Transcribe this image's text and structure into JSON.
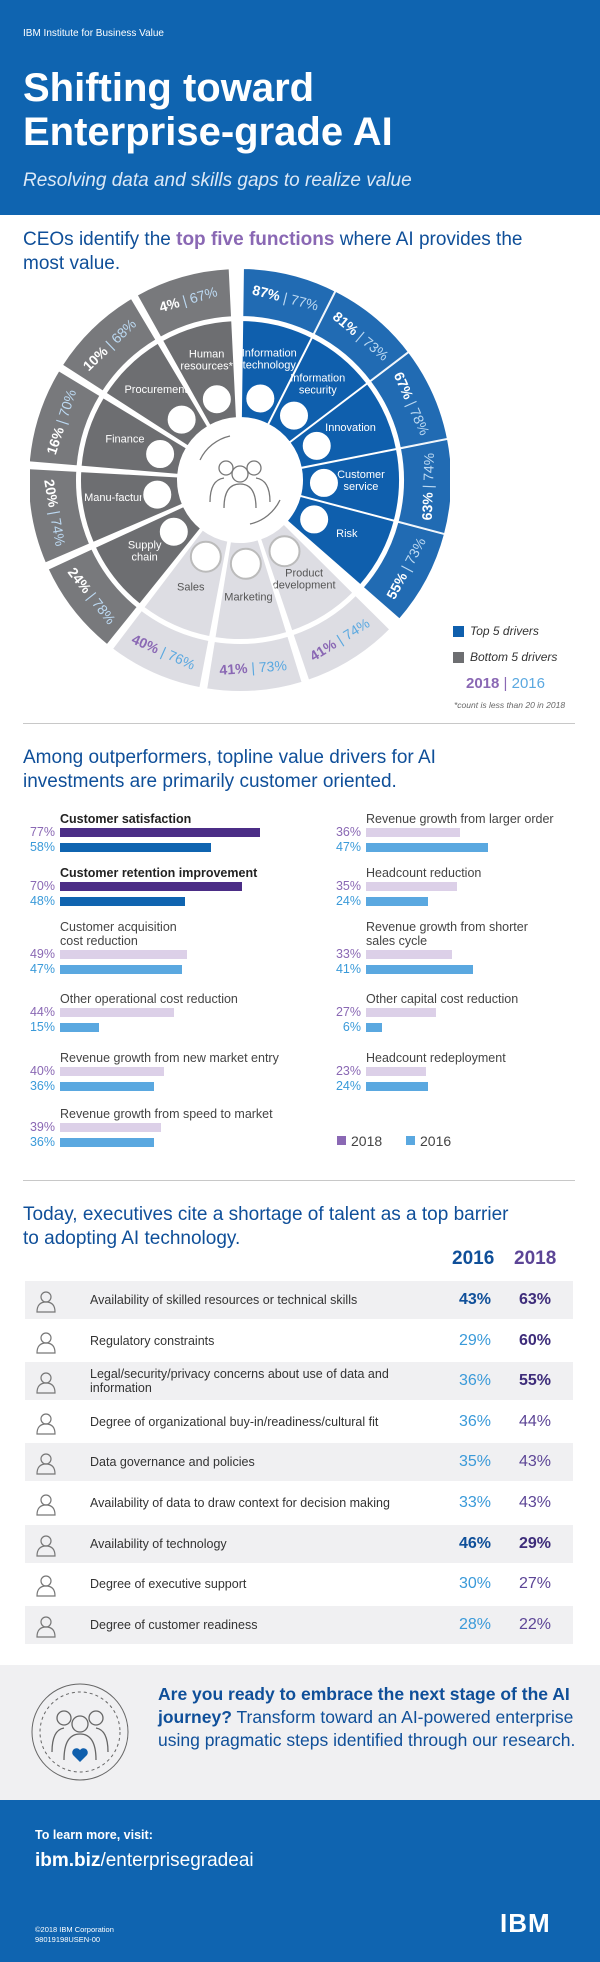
{
  "header": {
    "org": "IBM Institute for Business Value",
    "title_line1": "Shifting toward",
    "title_line2": "Enterprise-grade AI",
    "subtitle": "Resolving data and skills gaps to realize value"
  },
  "section1": {
    "title_pre": "CEOs identify the ",
    "title_highlight": "top five functions",
    "title_post": " where AI provides the",
    "title_line2": "most value.",
    "legend_top": "Top 5 drivers",
    "legend_bottom": "Bottom 5 drivers",
    "legend_year_a": "2018",
    "legend_sep": " | ",
    "legend_year_b": "2016",
    "footnote": "*count is less than 20 in 2018",
    "colors": {
      "top": "#0f5fad",
      "bottom": "#6d6e71",
      "light": "#dddde3",
      "y2018": "#8a68b4",
      "y2016": "#5aa8e0"
    }
  },
  "section2": {
    "title_line1": "Among outperformers, topline value drivers for AI",
    "title_line2": "investments are primarily customer oriented.",
    "legend_2018": "2018",
    "legend_2016": "2016"
  },
  "section3": {
    "title_line1": "Today, executives cite a shortage of talent as a top barrier",
    "title_line2": "to adopting AI technology.",
    "col_2016": "2016",
    "col_2018": "2018",
    "rows": [
      {
        "icon": "graduate-icon",
        "label": "Availability of skilled resources or technical skills",
        "v2016": "43%",
        "v2018": "63%",
        "bold16": true,
        "bold18": true
      },
      {
        "icon": "capitol-icon",
        "label": "Regulatory constraints",
        "v2016": "29%",
        "v2018": "60%",
        "bold16": false,
        "bold18": true
      },
      {
        "icon": "scales-icon",
        "label": "Legal/security/privacy concerns about use of data and information",
        "v2016": "36%",
        "v2018": "55%",
        "bold16": false,
        "bold18": true
      },
      {
        "icon": "thumbs-up-icon",
        "label": "Degree of organizational buy-in/readiness/cultural fit",
        "v2016": "36%",
        "v2018": "44%",
        "bold16": false,
        "bold18": false
      },
      {
        "icon": "institution-icon",
        "label": "Data governance and policies",
        "v2016": "35%",
        "v2018": "43%",
        "bold16": false,
        "bold18": false
      },
      {
        "icon": "binary-data-icon",
        "label": "Availability of data to draw context for decision making",
        "v2016": "33%",
        "v2018": "43%",
        "bold16": false,
        "bold18": false
      },
      {
        "icon": "server-icon",
        "label": "Availability of technology",
        "v2016": "46%",
        "v2018": "29%",
        "bold16": true,
        "bold18": true
      },
      {
        "icon": "executives-icon",
        "label": "Degree of executive support",
        "v2016": "30%",
        "v2018": "27%",
        "bold16": false,
        "bold18": false
      },
      {
        "icon": "customer-heart-icon",
        "label": "Degree of customer readiness",
        "v2016": "28%",
        "v2018": "22%",
        "bold16": false,
        "bold18": false
      }
    ]
  },
  "cta": {
    "bold_line1": "Are you ready to embrace the next stage",
    "bold_line2": "of the AI journey?",
    "rest": " Transform toward an AI-powered enterprise using pragmatic steps identified through our research."
  },
  "footer": {
    "learn": "To learn more, visit:",
    "url_bold": "ibm.biz",
    "url_rest": "/enterprisegradeai",
    "copyright": "©2018 IBM Corporation",
    "code": "98019198USEN-00",
    "logo": "IBM"
  },
  "chart_data": [
    {
      "type": "pie",
      "categories": [
        "Information technology",
        "Information security",
        "Innovation",
        "Customer service",
        "Risk",
        "Product development",
        "Marketing",
        "Sales",
        "Supply chain",
        "Manu-facturing",
        "Finance",
        "Procurement",
        "Human resources*"
      ],
      "group": [
        "top",
        "top",
        "top",
        "top",
        "top",
        "light",
        "light",
        "light",
        "bottom",
        "bottom",
        "bottom",
        "bottom",
        "bottom"
      ],
      "series": [
        {
          "name": "2018",
          "values": [
            87,
            81,
            67,
            63,
            55,
            41,
            41,
            40,
            24,
            20,
            16,
            10,
            4
          ]
        },
        {
          "name": "2016",
          "values": [
            77,
            73,
            78,
            74,
            73,
            74,
            73,
            76,
            78,
            74,
            70,
            68,
            67
          ]
        }
      ],
      "legend": [
        "Top 5 drivers",
        "Bottom 5 drivers"
      ]
    },
    {
      "type": "bar",
      "categories": [
        "Customer satisfaction",
        "Customer retention improvement",
        "Customer acquisition cost reduction",
        "Other operational cost reduction",
        "Revenue growth from new market entry",
        "Revenue growth from speed to market",
        "Revenue growth from larger order",
        "Headcount reduction",
        "Revenue growth from shorter sales cycle",
        "Other capital cost reduction",
        "Headcount redeployment"
      ],
      "series": [
        {
          "name": "2018",
          "values": [
            77,
            70,
            49,
            44,
            40,
            39,
            36,
            35,
            33,
            27,
            23
          ]
        },
        {
          "name": "2016",
          "values": [
            58,
            48,
            47,
            15,
            36,
            36,
            47,
            24,
            41,
            6,
            24
          ]
        }
      ],
      "xlim": [
        0,
        80
      ],
      "legend": [
        "2018",
        "2016"
      ]
    }
  ]
}
